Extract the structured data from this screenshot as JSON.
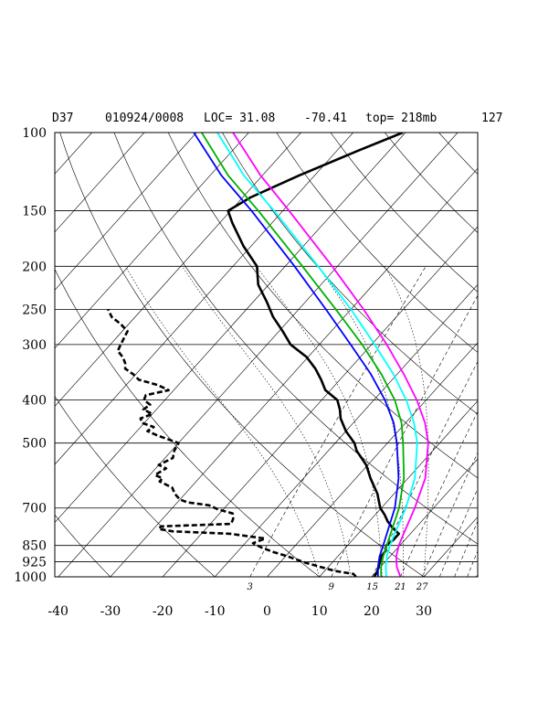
{
  "header": {
    "station": "D37",
    "datetime": "010924/0008",
    "loc": "LOC= 31.08",
    "lon": "-70.41",
    "top": "top= 218mb",
    "number": "127"
  },
  "chart_data": {
    "type": "line",
    "title": "",
    "xlabel": "",
    "ylabel": "",
    "y_scale": "log-pressure",
    "x_skewed": true,
    "pressure_range_mb": [
      1000,
      100
    ],
    "temperature_range_c": [
      -40,
      35
    ],
    "pressure_ticks": [
      {
        "value": 100,
        "label": "100"
      },
      {
        "value": 150,
        "label": "150"
      },
      {
        "value": 200,
        "label": "200"
      },
      {
        "value": 250,
        "label": "250"
      },
      {
        "value": 300,
        "label": "300"
      },
      {
        "value": 400,
        "label": "400"
      },
      {
        "value": 500,
        "label": "500"
      },
      {
        "value": 700,
        "label": "700"
      },
      {
        "value": 850,
        "label": "850"
      },
      {
        "value": 925,
        "label": "925"
      },
      {
        "value": 1000,
        "label": "1000"
      }
    ],
    "temperature_ticks": [
      {
        "value": -40,
        "label": "-40"
      },
      {
        "value": -30,
        "label": "-30"
      },
      {
        "value": -20,
        "label": "-20"
      },
      {
        "value": -10,
        "label": "-10"
      },
      {
        "value": 0,
        "label": "0"
      },
      {
        "value": 10,
        "label": "10"
      },
      {
        "value": 20,
        "label": "20"
      },
      {
        "value": 30,
        "label": "30"
      }
    ],
    "mixing_ratio_labels": [
      {
        "value": 3,
        "label": "3"
      },
      {
        "value": 9,
        "label": "9"
      },
      {
        "value": 15,
        "label": "15"
      },
      {
        "value": 21,
        "label": "21"
      },
      {
        "value": 27,
        "label": "27"
      }
    ],
    "series": [
      {
        "style": "solid-bold",
        "color": "#000000",
        "points": [
          [
            1000,
            20.5
          ],
          [
            975,
            20.2
          ],
          [
            950,
            19.6
          ],
          [
            925,
            19.0
          ],
          [
            900,
            18.3
          ],
          [
            875,
            18.2
          ],
          [
            850,
            17.4
          ],
          [
            825,
            17.8
          ],
          [
            800,
            17.8
          ],
          [
            775,
            15.5
          ],
          [
            750,
            13.5
          ],
          [
            725,
            11.8
          ],
          [
            700,
            9.8
          ],
          [
            650,
            6.8
          ],
          [
            600,
            2.8
          ],
          [
            560,
            -0.3
          ],
          [
            520,
            -4.6
          ],
          [
            500,
            -6.3
          ],
          [
            470,
            -10.0
          ],
          [
            440,
            -13.2
          ],
          [
            420,
            -14.9
          ],
          [
            400,
            -17.0
          ],
          [
            380,
            -21.0
          ],
          [
            360,
            -23.6
          ],
          [
            340,
            -26.6
          ],
          [
            320,
            -30.3
          ],
          [
            300,
            -35.5
          ],
          [
            280,
            -39.3
          ],
          [
            260,
            -43.6
          ],
          [
            240,
            -47.5
          ],
          [
            220,
            -52.0
          ],
          [
            200,
            -55.4
          ],
          [
            180,
            -61.5
          ],
          [
            160,
            -67.5
          ],
          [
            150,
            -70.5
          ],
          [
            140,
            -68.5
          ],
          [
            125,
            -63.0
          ],
          [
            110,
            -56.0
          ],
          [
            100,
            -50.5
          ]
        ]
      },
      {
        "style": "dashed-bold",
        "color": "#000000",
        "points": [
          [
            1000,
            17.0
          ],
          [
            985,
            16.0
          ],
          [
            970,
            12.0
          ],
          [
            950,
            8.5
          ],
          [
            930,
            5.0
          ],
          [
            900,
            0.5
          ],
          [
            880,
            -3.0
          ],
          [
            860,
            -6.0
          ],
          [
            840,
            -8.5
          ],
          [
            820,
            -7.0
          ],
          [
            800,
            -14.5
          ],
          [
            790,
            -26.0
          ],
          [
            780,
            -29.0
          ],
          [
            770,
            -29.0
          ],
          [
            760,
            -16.0
          ],
          [
            740,
            -16.5
          ],
          [
            720,
            -17.5
          ],
          [
            705,
            -21.0
          ],
          [
            690,
            -23.5
          ],
          [
            680,
            -28.0
          ],
          [
            670,
            -30.0
          ],
          [
            650,
            -32.0
          ],
          [
            630,
            -33.5
          ],
          [
            610,
            -37.0
          ],
          [
            600,
            -37.0
          ],
          [
            590,
            -39.0
          ],
          [
            570,
            -38.0
          ],
          [
            560,
            -40.0
          ],
          [
            540,
            -38.5
          ],
          [
            520,
            -39.5
          ],
          [
            500,
            -40.0
          ],
          [
            480,
            -45.5
          ],
          [
            470,
            -48.0
          ],
          [
            460,
            -47.5
          ],
          [
            450,
            -50.5
          ],
          [
            440,
            -51.5
          ],
          [
            430,
            -50.0
          ],
          [
            420,
            -52.5
          ],
          [
            410,
            -52.0
          ],
          [
            400,
            -54.0
          ],
          [
            390,
            -54.5
          ],
          [
            380,
            -51.0
          ],
          [
            370,
            -54.0
          ],
          [
            360,
            -58.5
          ],
          [
            350,
            -60.5
          ],
          [
            340,
            -63.0
          ],
          [
            330,
            -64.0
          ],
          [
            320,
            -65.5
          ],
          [
            310,
            -67.5
          ],
          [
            300,
            -68.0
          ],
          [
            290,
            -68.5
          ],
          [
            280,
            -69.0
          ],
          [
            270,
            -71.5
          ],
          [
            260,
            -74.5
          ],
          [
            250,
            -76.5
          ]
        ]
      },
      {
        "style": "solid",
        "color": "#ff00ff",
        "points": [
          [
            1000,
            25.5
          ],
          [
            950,
            23.1
          ],
          [
            900,
            21.2
          ],
          [
            850,
            19.8
          ],
          [
            800,
            18.7
          ],
          [
            700,
            16.4
          ],
          [
            600,
            13.3
          ],
          [
            500,
            7.8
          ],
          [
            450,
            3.7
          ],
          [
            400,
            -1.8
          ],
          [
            350,
            -8.7
          ],
          [
            300,
            -17.1
          ],
          [
            250,
            -27.6
          ],
          [
            200,
            -41.0
          ],
          [
            150,
            -58.8
          ],
          [
            125,
            -70.3
          ],
          [
            100,
            -83.0
          ]
        ]
      },
      {
        "style": "solid",
        "color": "#00ffff",
        "points": [
          [
            1000,
            22.8
          ],
          [
            950,
            21.0
          ],
          [
            900,
            19.4
          ],
          [
            850,
            18.1
          ],
          [
            800,
            17.0
          ],
          [
            700,
            14.7
          ],
          [
            600,
            11.3
          ],
          [
            500,
            5.7
          ],
          [
            450,
            1.6
          ],
          [
            400,
            -3.8
          ],
          [
            350,
            -10.7
          ],
          [
            300,
            -19.4
          ],
          [
            250,
            -30.0
          ],
          [
            200,
            -43.7
          ],
          [
            150,
            -61.7
          ],
          [
            125,
            -73.5
          ],
          [
            100,
            -86.0
          ]
        ]
      },
      {
        "style": "solid",
        "color": "#00b000",
        "points": [
          [
            1000,
            21.8
          ],
          [
            950,
            20.1
          ],
          [
            900,
            18.7
          ],
          [
            850,
            17.5
          ],
          [
            800,
            16.2
          ],
          [
            700,
            13.4
          ],
          [
            600,
            9.2
          ],
          [
            500,
            3.0
          ],
          [
            450,
            -0.8
          ],
          [
            400,
            -6.0
          ],
          [
            350,
            -13.0
          ],
          [
            300,
            -21.8
          ],
          [
            250,
            -32.9
          ],
          [
            200,
            -46.7
          ],
          [
            150,
            -64.7
          ],
          [
            125,
            -76.5
          ],
          [
            100,
            -89.0
          ]
        ]
      },
      {
        "style": "solid",
        "color": "#0000ff",
        "points": [
          [
            1000,
            21.2
          ],
          [
            950,
            19.5
          ],
          [
            900,
            18.0
          ],
          [
            850,
            16.8
          ],
          [
            800,
            15.5
          ],
          [
            700,
            12.6
          ],
          [
            600,
            8.2
          ],
          [
            500,
            1.8
          ],
          [
            450,
            -2.3
          ],
          [
            400,
            -7.9
          ],
          [
            350,
            -15.0
          ],
          [
            300,
            -24.0
          ],
          [
            250,
            -34.8
          ],
          [
            200,
            -48.2
          ],
          [
            150,
            -66.0
          ],
          [
            125,
            -77.8
          ],
          [
            100,
            -90.5
          ]
        ]
      }
    ]
  }
}
